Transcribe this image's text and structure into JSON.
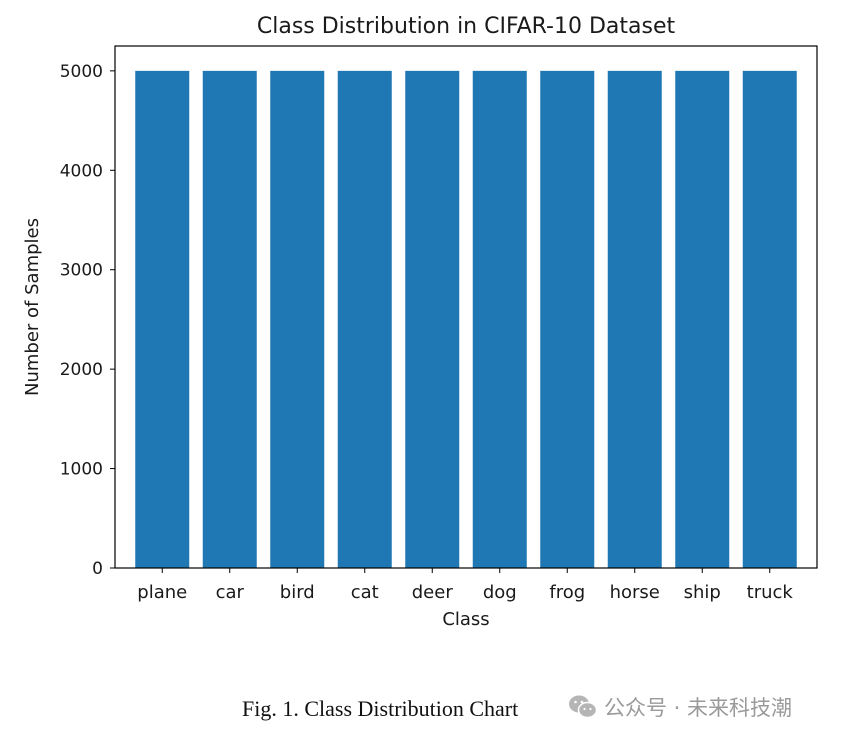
{
  "chart_data": {
    "type": "bar",
    "title": "Class Distribution in CIFAR-10 Dataset",
    "xlabel": "Class",
    "ylabel": "Number of Samples",
    "categories": [
      "plane",
      "car",
      "bird",
      "cat",
      "deer",
      "dog",
      "frog",
      "horse",
      "ship",
      "truck"
    ],
    "values": [
      5000,
      5000,
      5000,
      5000,
      5000,
      5000,
      5000,
      5000,
      5000,
      5000
    ],
    "ylim": [
      0,
      5250
    ],
    "yticks": [
      0,
      1000,
      2000,
      3000,
      4000,
      5000
    ],
    "bar_color": "#1f77b4",
    "grid": false,
    "legend": "none"
  },
  "caption": "Fig. 1. Class Distribution Chart",
  "watermark": {
    "icon": "wechat-icon",
    "text": "公众号 · 未来科技潮",
    "color": "#9a9a9a"
  }
}
